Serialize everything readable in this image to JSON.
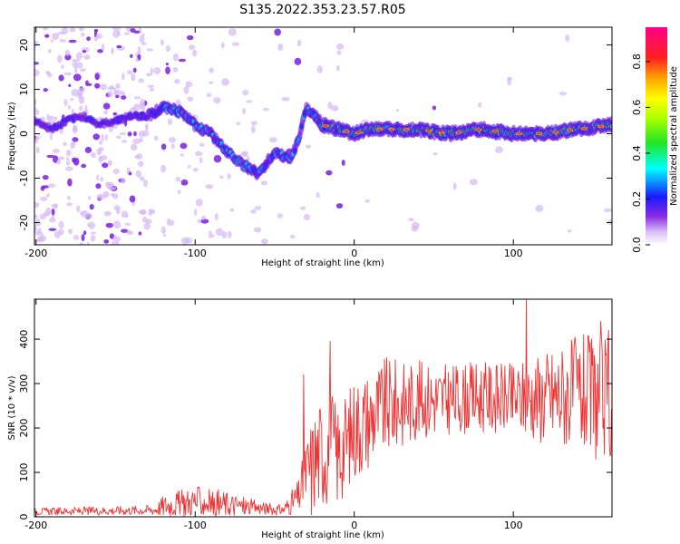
{
  "title": "S135.2022.353.23.57.R05",
  "chart_data": [
    {
      "type": "heatmap",
      "xlabel": "Height of straight line (km)",
      "ylabel": "Frequency (Hz)",
      "xlim": [
        -201,
        162
      ],
      "ylim": [
        -25,
        24
      ],
      "xticks": [
        -200,
        -100,
        0,
        100
      ],
      "yticks": [
        -20,
        -10,
        0,
        10,
        20
      ],
      "colorbar": {
        "label": "Normalized spectral amplitude",
        "ticks": [
          0.0,
          0.2,
          0.4,
          0.6,
          0.8
        ],
        "range": [
          0,
          0.95
        ],
        "colormap": "rainbow (purple-blue-cyan-green-yellow-orange-red-magenta)"
      },
      "ridge": {
        "x": [
          -201,
          -190,
          -180,
          -170,
          -160,
          -150,
          -140,
          -130,
          -120,
          -110,
          -100,
          -90,
          -80,
          -70,
          -60,
          -50,
          -40,
          -35,
          -30,
          -25,
          -20,
          -10,
          0,
          10,
          20,
          40,
          60,
          80,
          100,
          120,
          140,
          162
        ],
        "y": [
          3,
          1,
          3,
          4,
          2,
          3,
          4,
          4,
          6,
          5,
          2,
          0,
          -4,
          -7,
          -9,
          -4,
          -6,
          -1,
          6,
          4,
          2,
          1,
          0,
          1,
          1,
          1,
          0,
          1,
          0,
          0,
          1,
          2
        ]
      }
    },
    {
      "type": "line",
      "xlabel": "Height of straight line (km)",
      "ylabel": "SNR (10 * v/v)",
      "xlim": [
        -201,
        162
      ],
      "ylim": [
        0,
        490
      ],
      "xticks": [
        -200,
        -100,
        0,
        100
      ],
      "yticks": [
        0,
        100,
        200,
        300,
        400
      ],
      "color": "#ee3333",
      "trend": {
        "x": [
          -201,
          -150,
          -125,
          -120,
          -100,
          -80,
          -60,
          -45,
          -35,
          -30,
          -25,
          -20,
          -15,
          -10,
          -5,
          0,
          10,
          20,
          30,
          40,
          60,
          80,
          100,
          110,
          120,
          140,
          150,
          162
        ],
        "mean": [
          12,
          14,
          16,
          25,
          35,
          28,
          20,
          15,
          45,
          100,
          130,
          150,
          160,
          140,
          170,
          200,
          225,
          250,
          255,
          265,
          265,
          270,
          265,
          270,
          270,
          280,
          270,
          260
        ],
        "spread": [
          8,
          10,
          12,
          25,
          35,
          30,
          15,
          12,
          40,
          80,
          120,
          130,
          130,
          120,
          110,
          120,
          110,
          110,
          100,
          90,
          80,
          80,
          80,
          90,
          110,
          130,
          140,
          140
        ]
      },
      "spikes": [
        {
          "x": -32,
          "y": 320
        },
        {
          "x": -15,
          "y": 395
        },
        {
          "x": 108,
          "y": 488
        },
        {
          "x": 155,
          "y": 440
        },
        {
          "x": 160,
          "y": 420
        },
        {
          "x": -27,
          "y": 5
        }
      ]
    }
  ]
}
